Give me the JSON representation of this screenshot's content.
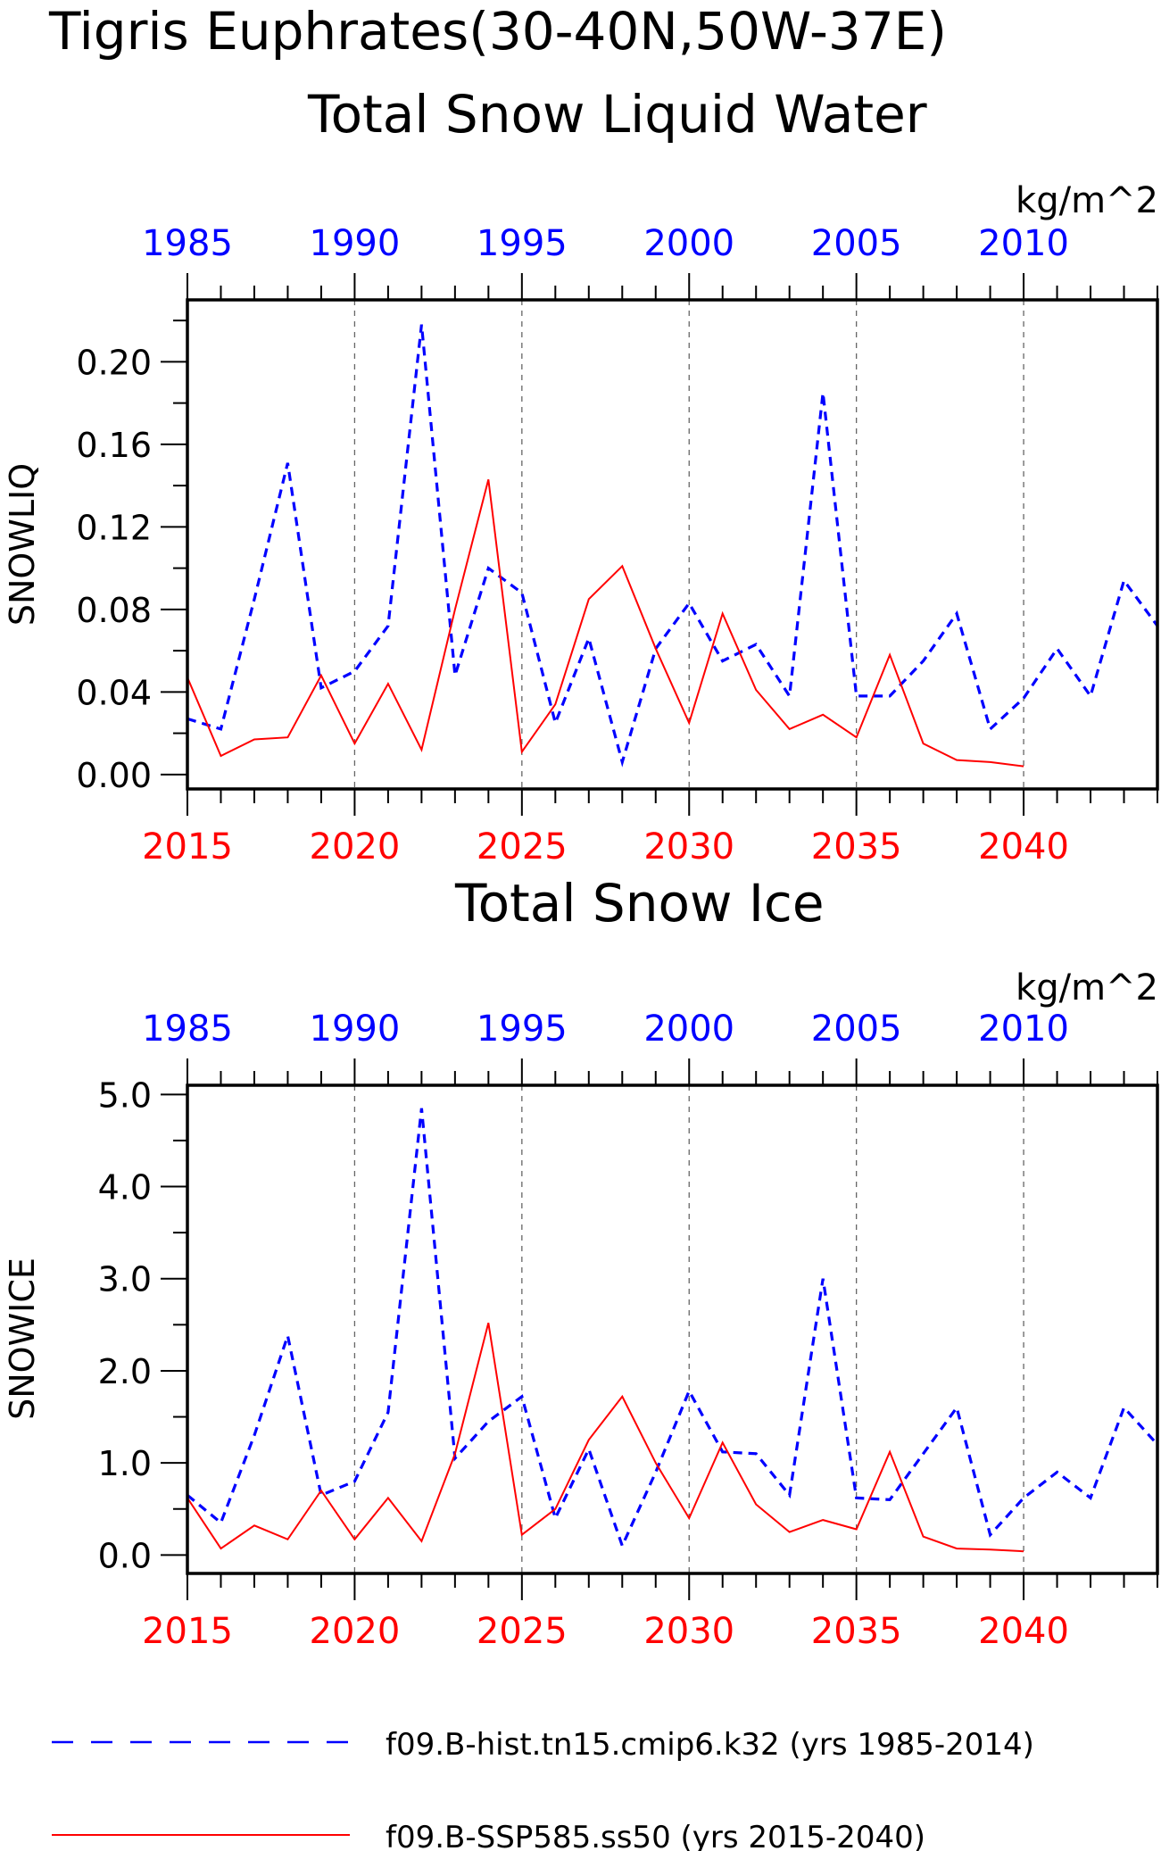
{
  "figure": {
    "title_line1": "Tigris Euphrates(30-40N,50W-37E)",
    "colors": {
      "hist": "#0000ff",
      "ssp": "#ff0000",
      "axis": "#000000"
    }
  },
  "legend": {
    "hist_label": "f09.B-hist.tn15.cmip6.k32 (yrs 1985-2014)",
    "ssp_label": "f09.B-SSP585.ss50 (yrs 2015-2040)"
  },
  "chart_data": [
    {
      "type": "line",
      "title": "Total Snow Liquid Water",
      "units": "kg/m^2",
      "ylabel": "SNOWLIQ",
      "ylim": [
        -0.007,
        0.23
      ],
      "yticks": [
        0.0,
        0.04,
        0.08,
        0.12,
        0.16,
        0.2
      ],
      "ytick_labels": [
        "0.00",
        "0.04",
        "0.08",
        "0.12",
        "0.16",
        "0.20"
      ],
      "ytick_minor_step": 0.02,
      "bottom_axis": {
        "label_years": [
          2015,
          2020,
          2025,
          2030,
          2035,
          2040
        ],
        "range": [
          2015,
          2044
        ]
      },
      "top_axis": {
        "label_years": [
          1985,
          1990,
          1995,
          2000,
          2005,
          2010
        ],
        "range": [
          1985,
          2014
        ]
      },
      "grid_years_bottom": [
        2020,
        2025,
        2030,
        2035,
        2040
      ],
      "series": [
        {
          "name": "f09.B-hist.tn15.cmip6.k32",
          "style": "dashed",
          "color": "#0000ff",
          "x": [
            1985,
            1986,
            1987,
            1988,
            1989,
            1990,
            1991,
            1992,
            1993,
            1994,
            1995,
            1996,
            1997,
            1998,
            1999,
            2000,
            2001,
            2002,
            2003,
            2004,
            2005,
            2006,
            2007,
            2008,
            2009,
            2010,
            2011,
            2012,
            2013,
            2014
          ],
          "y": [
            0.027,
            0.022,
            0.085,
            0.151,
            0.042,
            0.05,
            0.072,
            0.218,
            0.048,
            0.1,
            0.088,
            0.025,
            0.066,
            0.006,
            0.061,
            0.083,
            0.055,
            0.063,
            0.038,
            0.185,
            0.038,
            0.038,
            0.055,
            0.078,
            0.022,
            0.037,
            0.061,
            0.038,
            0.094,
            0.072
          ]
        },
        {
          "name": "f09.B-SSP585.ss50",
          "style": "solid",
          "color": "#ff0000",
          "x": [
            2015,
            2016,
            2017,
            2018,
            2019,
            2020,
            2021,
            2022,
            2023,
            2024,
            2025,
            2026,
            2027,
            2028,
            2029,
            2030,
            2031,
            2032,
            2033,
            2034,
            2035,
            2036,
            2037,
            2038,
            2039,
            2040
          ],
          "y": [
            0.047,
            0.009,
            0.017,
            0.018,
            0.048,
            0.015,
            0.044,
            0.012,
            0.08,
            0.143,
            0.011,
            0.034,
            0.085,
            0.101,
            0.061,
            0.025,
            0.078,
            0.041,
            0.022,
            0.029,
            0.018,
            0.058,
            0.015,
            0.007,
            0.006,
            0.004
          ]
        }
      ]
    },
    {
      "type": "line",
      "title": "Total Snow Ice",
      "units": "kg/m^2",
      "ylabel": "SNOWICE",
      "ylim": [
        -0.2,
        5.1
      ],
      "yticks": [
        0.0,
        1.0,
        2.0,
        3.0,
        4.0,
        5.0
      ],
      "ytick_labels": [
        "0.0",
        "1.0",
        "2.0",
        "3.0",
        "4.0",
        "5.0"
      ],
      "ytick_minor_step": 0.5,
      "bottom_axis": {
        "label_years": [
          2015,
          2020,
          2025,
          2030,
          2035,
          2040
        ],
        "range": [
          2015,
          2044
        ]
      },
      "top_axis": {
        "label_years": [
          1985,
          1990,
          1995,
          2000,
          2005,
          2010
        ],
        "range": [
          1985,
          2014
        ]
      },
      "grid_years_bottom": [
        2020,
        2025,
        2030,
        2035,
        2040
      ],
      "series": [
        {
          "name": "f09.B-hist.tn15.cmip6.k32",
          "style": "dashed",
          "color": "#0000ff",
          "x": [
            1985,
            1986,
            1987,
            1988,
            1989,
            1990,
            1991,
            1992,
            1993,
            1994,
            1995,
            1996,
            1997,
            1998,
            1999,
            2000,
            2001,
            2002,
            2003,
            2004,
            2005,
            2006,
            2007,
            2008,
            2009,
            2010,
            2011,
            2012,
            2013,
            2014
          ],
          "y": [
            0.65,
            0.35,
            1.3,
            2.38,
            0.65,
            0.8,
            1.55,
            4.85,
            1.05,
            1.45,
            1.72,
            0.4,
            1.15,
            0.1,
            0.9,
            1.78,
            1.12,
            1.1,
            0.65,
            3.0,
            0.62,
            0.6,
            1.1,
            1.6,
            0.22,
            0.62,
            0.9,
            0.62,
            1.6,
            1.2
          ]
        },
        {
          "name": "f09.B-SSP585.ss50",
          "style": "solid",
          "color": "#ff0000",
          "x": [
            2015,
            2016,
            2017,
            2018,
            2019,
            2020,
            2021,
            2022,
            2023,
            2024,
            2025,
            2026,
            2027,
            2028,
            2029,
            2030,
            2031,
            2032,
            2033,
            2034,
            2035,
            2036,
            2037,
            2038,
            2039,
            2040
          ],
          "y": [
            0.62,
            0.07,
            0.32,
            0.17,
            0.7,
            0.17,
            0.62,
            0.15,
            1.1,
            2.52,
            0.22,
            0.5,
            1.25,
            1.72,
            1.0,
            0.4,
            1.22,
            0.55,
            0.25,
            0.38,
            0.28,
            1.12,
            0.2,
            0.07,
            0.06,
            0.04
          ]
        }
      ]
    }
  ]
}
